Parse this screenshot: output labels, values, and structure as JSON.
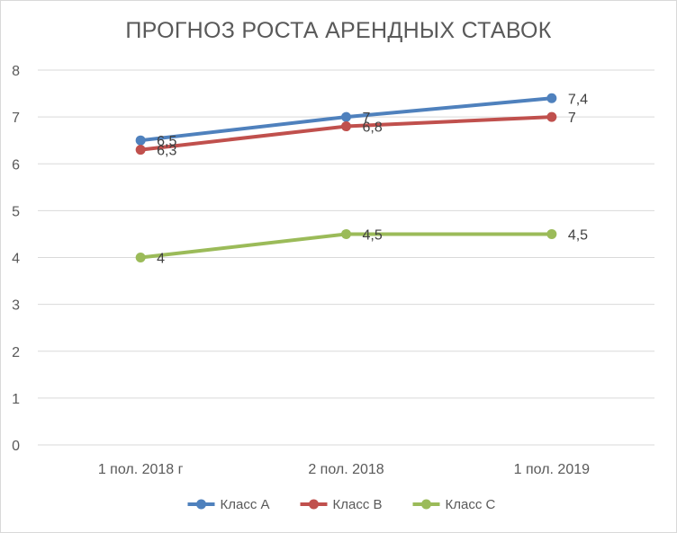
{
  "chart_data": {
    "type": "line",
    "title": "ПРОГНОЗ РОСТА АРЕНДНЫХ СТАВОК",
    "categories": [
      "1 пол. 2018 г",
      "2 пол. 2018",
      "1 пол. 2019"
    ],
    "series": [
      {
        "name": "Класс А",
        "values": [
          6.5,
          7,
          7.4
        ],
        "labels": [
          "6,5",
          "7",
          "7,4"
        ],
        "color": "#4f81bd"
      },
      {
        "name": "Класс В",
        "values": [
          6.3,
          6.8,
          7
        ],
        "labels": [
          "6,3",
          "6,8",
          "7"
        ],
        "color": "#c0504d"
      },
      {
        "name": "Класс С",
        "values": [
          4,
          4.5,
          4.5
        ],
        "labels": [
          "4",
          "4,5",
          "4,5"
        ],
        "color": "#9bbb59"
      }
    ],
    "ylim": [
      0,
      8
    ],
    "yticks": [
      "0",
      "1",
      "2",
      "3",
      "4",
      "5",
      "6",
      "7",
      "8"
    ],
    "grid": true,
    "legend_position": "bottom"
  }
}
